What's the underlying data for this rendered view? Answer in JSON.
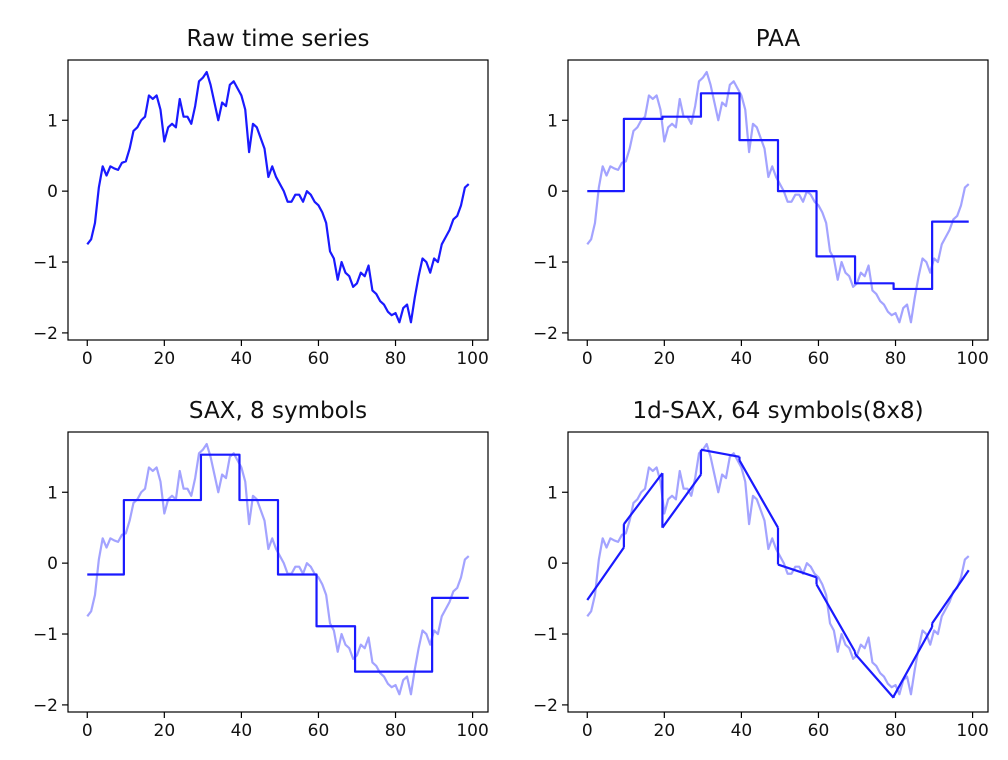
{
  "chart_data": [
    {
      "type": "line",
      "title": "Raw time series",
      "xlim": [
        -5,
        104
      ],
      "ylim": [
        -2.1,
        1.85
      ],
      "xticks": [
        0,
        20,
        40,
        60,
        80,
        100
      ],
      "yticks": [
        -2,
        -1,
        0,
        1
      ],
      "xtick_labels": [
        "0",
        "20",
        "40",
        "60",
        "80",
        "100"
      ],
      "ytick_labels": [
        "−2",
        "−1",
        "0",
        "1"
      ],
      "series": [
        {
          "color": "#1a1aff",
          "opacity": 1.0,
          "style": "line",
          "x": [
            0,
            1,
            2,
            3,
            4,
            5,
            6,
            7,
            8,
            9,
            10,
            11,
            12,
            13,
            14,
            15,
            16,
            17,
            18,
            19,
            20,
            21,
            22,
            23,
            24,
            25,
            26,
            27,
            28,
            29,
            30,
            31,
            32,
            33,
            34,
            35,
            36,
            37,
            38,
            39,
            40,
            41,
            42,
            43,
            44,
            45,
            46,
            47,
            48,
            49,
            50,
            51,
            52,
            53,
            54,
            55,
            56,
            57,
            58,
            59,
            60,
            61,
            62,
            63,
            64,
            65,
            66,
            67,
            68,
            69,
            70,
            71,
            72,
            73,
            74,
            75,
            76,
            77,
            78,
            79,
            80,
            81,
            82,
            83,
            84,
            85,
            86,
            87,
            88,
            89,
            90,
            91,
            92,
            93,
            94,
            95,
            96,
            97,
            98,
            99
          ],
          "y": [
            -0.75,
            -0.68,
            -0.45,
            0.05,
            0.35,
            0.22,
            0.35,
            0.32,
            0.3,
            0.4,
            0.42,
            0.6,
            0.85,
            0.9,
            1.0,
            1.05,
            1.35,
            1.3,
            1.35,
            1.15,
            0.7,
            0.9,
            0.95,
            0.9,
            1.3,
            1.05,
            1.05,
            0.95,
            1.2,
            1.55,
            1.6,
            1.68,
            1.5,
            1.25,
            1.0,
            1.25,
            1.2,
            1.5,
            1.55,
            1.45,
            1.35,
            1.15,
            0.55,
            0.95,
            0.9,
            0.75,
            0.6,
            0.2,
            0.35,
            0.2,
            0.1,
            0.0,
            -0.15,
            -0.15,
            -0.05,
            -0.05,
            -0.15,
            0.0,
            -0.05,
            -0.15,
            -0.2,
            -0.3,
            -0.45,
            -0.85,
            -0.95,
            -1.25,
            -1.0,
            -1.15,
            -1.2,
            -1.35,
            -1.3,
            -1.15,
            -1.2,
            -1.05,
            -1.4,
            -1.45,
            -1.55,
            -1.6,
            -1.7,
            -1.75,
            -1.72,
            -1.85,
            -1.65,
            -1.6,
            -1.85,
            -1.5,
            -1.2,
            -0.95,
            -1.0,
            -1.15,
            -0.95,
            -1.0,
            -0.75,
            -0.65,
            -0.55,
            -0.4,
            -0.35,
            -0.2,
            0.05,
            0.1
          ]
        }
      ]
    },
    {
      "type": "line",
      "title": "PAA",
      "xlim": [
        -5,
        104
      ],
      "ylim": [
        -2.1,
        1.85
      ],
      "xticks": [
        0,
        20,
        40,
        60,
        80,
        100
      ],
      "yticks": [
        -2,
        -1,
        0,
        1
      ],
      "xtick_labels": [
        "0",
        "20",
        "40",
        "60",
        "80",
        "100"
      ],
      "ytick_labels": [
        "−2",
        "−1",
        "0",
        "1"
      ],
      "series": [
        {
          "color": "#1a1aff",
          "opacity": 0.4,
          "style": "line",
          "ref": "raw"
        },
        {
          "color": "#1a1aff",
          "opacity": 1.0,
          "style": "steps",
          "segments": [
            [
              0,
              9.5,
              0.0
            ],
            [
              9.5,
              19.5,
              1.02
            ],
            [
              19.5,
              29.5,
              1.05
            ],
            [
              29.5,
              39.5,
              1.38
            ],
            [
              39.5,
              49.5,
              0.72
            ],
            [
              49.5,
              59.5,
              0.0
            ],
            [
              59.5,
              69.5,
              -0.92
            ],
            [
              69.5,
              79.5,
              -1.3
            ],
            [
              79.5,
              89.5,
              -1.38
            ],
            [
              89.5,
              99,
              -0.43
            ]
          ]
        }
      ]
    },
    {
      "type": "line",
      "title": "SAX, 8 symbols",
      "xlim": [
        -5,
        104
      ],
      "ylim": [
        -2.1,
        1.85
      ],
      "xticks": [
        0,
        20,
        40,
        60,
        80,
        100
      ],
      "yticks": [
        -2,
        -1,
        0,
        1
      ],
      "xtick_labels": [
        "0",
        "20",
        "40",
        "60",
        "80",
        "100"
      ],
      "ytick_labels": [
        "−2",
        "−1",
        "0",
        "1"
      ],
      "series": [
        {
          "color": "#1a1aff",
          "opacity": 0.4,
          "style": "line",
          "ref": "raw"
        },
        {
          "color": "#1a1aff",
          "opacity": 1.0,
          "style": "steps",
          "segments": [
            [
              0,
              9.5,
              -0.16
            ],
            [
              9.5,
              19.5,
              0.89
            ],
            [
              19.5,
              29.5,
              0.89
            ],
            [
              29.5,
              39.5,
              1.53
            ],
            [
              39.5,
              49.5,
              0.89
            ],
            [
              49.5,
              59.5,
              -0.16
            ],
            [
              59.5,
              69.5,
              -0.89
            ],
            [
              69.5,
              79.5,
              -1.53
            ],
            [
              79.5,
              89.5,
              -1.53
            ],
            [
              89.5,
              99,
              -0.49
            ]
          ]
        }
      ]
    },
    {
      "type": "line",
      "title": "1d-SAX, 64 symbols(8x8)",
      "xlim": [
        -5,
        104
      ],
      "ylim": [
        -2.1,
        1.85
      ],
      "xticks": [
        0,
        20,
        40,
        60,
        80,
        100
      ],
      "yticks": [
        -2,
        -1,
        0,
        1
      ],
      "xtick_labels": [
        "0",
        "20",
        "40",
        "60",
        "80",
        "100"
      ],
      "ytick_labels": [
        "−2",
        "−1",
        "0",
        "1"
      ],
      "series": [
        {
          "color": "#1a1aff",
          "opacity": 0.4,
          "style": "line",
          "ref": "raw"
        },
        {
          "color": "#1a1aff",
          "opacity": 1.0,
          "style": "segments",
          "segments": [
            [
              0,
              -0.52,
              9.5,
              0.22
            ],
            [
              9.5,
              0.55,
              19.5,
              1.27
            ],
            [
              19.5,
              0.5,
              29.5,
              1.25
            ],
            [
              29.5,
              1.6,
              39.5,
              1.5
            ],
            [
              39.5,
              1.45,
              49.5,
              0.5
            ],
            [
              49.5,
              -0.02,
              59.5,
              -0.2
            ],
            [
              59.5,
              -0.3,
              69.5,
              -1.25
            ],
            [
              69.5,
              -1.28,
              79.5,
              -1.9
            ],
            [
              79.5,
              -1.88,
              89.5,
              -0.9
            ],
            [
              89.5,
              -0.85,
              99,
              -0.1
            ]
          ]
        }
      ]
    }
  ]
}
